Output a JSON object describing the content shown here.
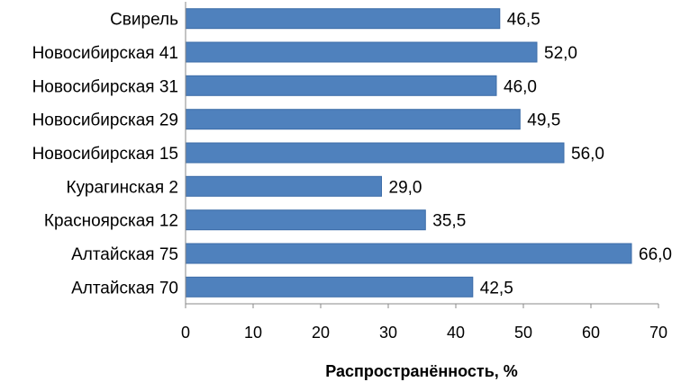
{
  "chart_data": {
    "type": "bar",
    "orientation": "horizontal",
    "categories": [
      "Свирель",
      "Новосибирская 41",
      "Новосибирская 31",
      "Новосибирская 29",
      "Новосибирская 15",
      "Курагинская 2",
      "Красноярская 12",
      "Алтайская 75",
      "Алтайская 70"
    ],
    "values": [
      46.5,
      52.0,
      46.0,
      49.5,
      56.0,
      29.0,
      35.5,
      66.0,
      42.5
    ],
    "value_labels": [
      "46,5",
      "52,0",
      "46,0",
      "49,5",
      "56,0",
      "29,0",
      "35,5",
      "66,0",
      "42,5"
    ],
    "title": "",
    "xlabel": "Распространённость,  %",
    "ylabel": "",
    "xlim": [
      0,
      70
    ],
    "xticks": [
      "0",
      "10",
      "20",
      "30",
      "40",
      "50",
      "60",
      "70"
    ],
    "grid": false,
    "legend": "none",
    "colors": {
      "bar": "#4F81BD",
      "bar_stroke": "#3C6DA8",
      "axis": "#888888"
    }
  }
}
